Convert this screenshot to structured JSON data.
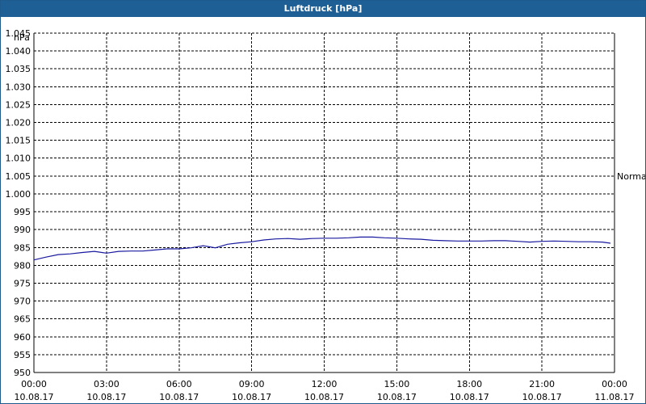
{
  "window": {
    "title": "Luftdruck [hPa]"
  },
  "chart_data": {
    "type": "line",
    "title": "Luftdruck [hPa]",
    "ylabel": "hPa",
    "xlabel": "",
    "ylim": [
      950,
      1045
    ],
    "y_ticks": [
      "950",
      "955",
      "960",
      "965",
      "970",
      "975",
      "980",
      "985",
      "990",
      "995",
      "1.000",
      "1.005",
      "1.010",
      "1.015",
      "1.020",
      "1.025",
      "1.030",
      "1.035",
      "1.040",
      "1.045"
    ],
    "y_tick_values": [
      950,
      955,
      960,
      965,
      970,
      975,
      980,
      985,
      990,
      995,
      1000,
      1005,
      1010,
      1015,
      1020,
      1025,
      1030,
      1035,
      1040,
      1045
    ],
    "x_ticks": [
      {
        "time": "00:00",
        "date": "10.08.17"
      },
      {
        "time": "03:00",
        "date": "10.08.17"
      },
      {
        "time": "06:00",
        "date": "10.08.17"
      },
      {
        "time": "09:00",
        "date": "10.08.17"
      },
      {
        "time": "12:00",
        "date": "10.08.17"
      },
      {
        "time": "15:00",
        "date": "10.08.17"
      },
      {
        "time": "18:00",
        "date": "10.08.17"
      },
      {
        "time": "21:00",
        "date": "10.08.17"
      },
      {
        "time": "00:00",
        "date": "11.08.17"
      }
    ],
    "xlim": [
      "10.08.17 00:00",
      "11.08.17 00:00"
    ],
    "grid": true,
    "reference_line": {
      "label": "Normal",
      "value": 1005
    },
    "series": [
      {
        "color": "#1a1aa0",
        "x": [
          "00:00",
          "00:30",
          "01:00",
          "01:30",
          "02:00",
          "02:30",
          "03:00",
          "03:30",
          "04:00",
          "04:30",
          "05:00",
          "05:30",
          "06:00",
          "06:30",
          "07:00",
          "07:30",
          "08:00",
          "08:30",
          "09:00",
          "09:30",
          "10:00",
          "10:30",
          "11:00",
          "11:30",
          "12:00",
          "12:30",
          "13:00",
          "13:30",
          "14:00",
          "14:30",
          "15:00",
          "15:30",
          "16:00",
          "16:30",
          "17:00",
          "17:30",
          "18:00",
          "18:30",
          "19:00",
          "19:30",
          "20:00",
          "20:30",
          "21:00",
          "21:30",
          "22:00",
          "22:30",
          "23:00",
          "23:30",
          "23:50"
        ],
        "values": [
          981.5,
          982.3,
          983.0,
          983.2,
          983.6,
          983.9,
          983.4,
          983.9,
          984.0,
          984.0,
          984.3,
          984.6,
          984.6,
          984.9,
          985.5,
          984.9,
          985.9,
          986.3,
          986.6,
          987.1,
          987.4,
          987.5,
          987.3,
          987.5,
          987.6,
          987.6,
          987.7,
          987.9,
          987.9,
          987.7,
          987.6,
          987.4,
          987.3,
          987.0,
          986.9,
          986.8,
          986.8,
          986.8,
          986.9,
          986.9,
          986.7,
          986.5,
          986.7,
          986.8,
          986.7,
          986.6,
          986.6,
          986.5,
          986.2
        ]
      }
    ]
  }
}
